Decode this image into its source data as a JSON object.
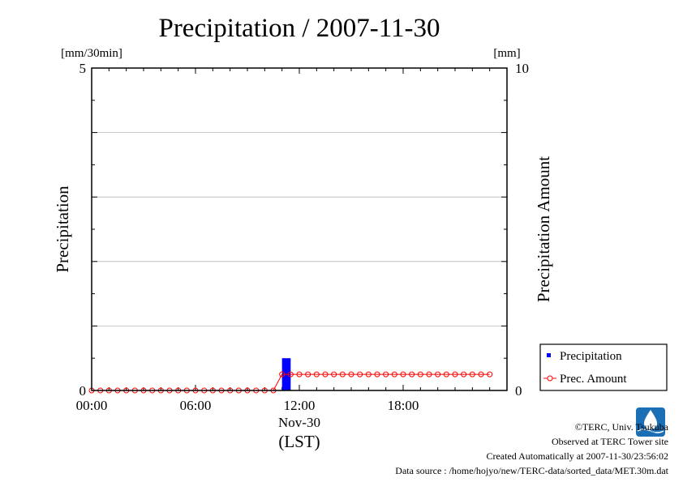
{
  "chart_data": {
    "type": "bar",
    "title": "Precipitation / 2007-11-30",
    "y_left": {
      "label": "Precipitation",
      "unit": "[mm/30min]",
      "range": [
        0,
        5
      ],
      "ticks": [
        "0",
        "5"
      ]
    },
    "y_right": {
      "label": "Precipitation Amount",
      "unit": "[mm]",
      "range": [
        0,
        10
      ],
      "ticks": [
        "0",
        "10"
      ]
    },
    "x_axis": {
      "range_hours": [
        0,
        24
      ],
      "ticks": [
        {
          "hour": 0,
          "label": "00:00"
        },
        {
          "hour": 6,
          "label": "06:00"
        },
        {
          "hour": 12,
          "label": "12:00"
        },
        {
          "hour": 18,
          "label": "18:00"
        }
      ],
      "date_label": "Nov-30",
      "zone_label": "(LST)"
    },
    "grid": "horizontal",
    "legend_position": "bottom-right",
    "series": [
      {
        "name": "Precipitation",
        "type": "bar",
        "axis": "left",
        "color": "#0000ff",
        "points": [
          {
            "time": "11:00",
            "value": 0.5
          }
        ]
      },
      {
        "name": "Prec. Amount",
        "type": "line",
        "axis": "right",
        "color": "#ff0000",
        "marker": "open-circle",
        "interval_minutes": 30,
        "values": [
          0,
          0,
          0,
          0,
          0,
          0,
          0,
          0,
          0,
          0,
          0,
          0,
          0,
          0,
          0,
          0,
          0,
          0,
          0,
          0,
          0,
          0,
          0.5,
          0.5,
          0.5,
          0.5,
          0.5,
          0.5,
          0.5,
          0.5,
          0.5,
          0.5,
          0.5,
          0.5,
          0.5,
          0.5,
          0.5,
          0.5,
          0.5,
          0.5,
          0.5,
          0.5,
          0.5,
          0.5,
          0.5,
          0.5,
          0.5
        ]
      }
    ]
  },
  "footer": {
    "copyright": "©TERC, Univ. Tsukuba",
    "observed": "Observed at TERC Tower site",
    "created": "Created Automatically at 2007-11-30/23:56:02",
    "source": "Data source : /home/hojyo/new/TERC-data/sorted_data/MET.30m.dat"
  },
  "logo": {
    "text": "TERC",
    "color": "#1a6fb5"
  }
}
